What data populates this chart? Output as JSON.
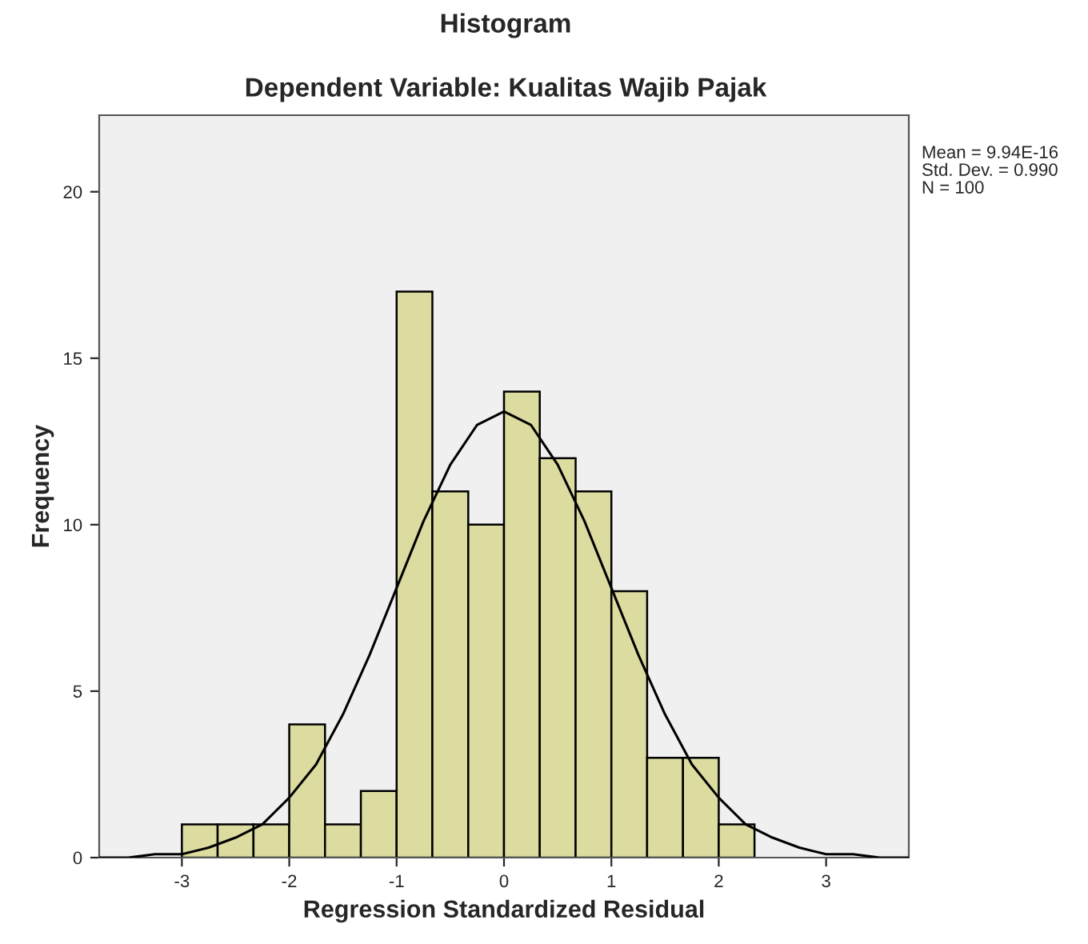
{
  "chart_data": {
    "type": "histogram",
    "title": "Histogram",
    "subtitle": "Dependent Variable: Kualitas Wajib Pajak",
    "xlabel": "Regression Standardized Residual",
    "ylabel": "Frequency",
    "bins": [
      -3,
      -2.667,
      -2.333,
      -2,
      -1.667,
      -1.333,
      -1,
      -0.667,
      -0.333,
      0,
      0.333,
      0.667,
      1,
      1.333,
      1.667,
      2,
      2.333
    ],
    "values": [
      1,
      1,
      1,
      4,
      1,
      2,
      17,
      11,
      10,
      14,
      12,
      11,
      8,
      3,
      3,
      1
    ],
    "color": "#dcdca0",
    "series": [
      {
        "type": "line",
        "color": "#000000",
        "x": [
          -3.77,
          -3.5,
          -3.25,
          -3,
          -2.75,
          -2.5,
          -2.25,
          -2,
          -1.75,
          -1.5,
          -1.25,
          -1,
          -0.75,
          -0.5,
          -0.25,
          0,
          0.25,
          0.5,
          0.75,
          1,
          1.25,
          1.5,
          1.75,
          2,
          2.25,
          2.5,
          2.75,
          3,
          3.25,
          3.5,
          3.77
        ],
        "values": [
          0.0,
          0.0,
          0.1,
          0.1,
          0.3,
          0.6,
          1.0,
          1.8,
          2.8,
          4.3,
          6.1,
          8.1,
          10.1,
          11.8,
          13.0,
          13.4,
          13.0,
          11.8,
          10.1,
          8.1,
          6.1,
          4.3,
          2.8,
          1.8,
          1.0,
          0.6,
          0.3,
          0.1,
          0.1,
          0.0,
          0.0
        ]
      }
    ],
    "xlim": [
      -3.77,
      3.77
    ],
    "ylim": [
      0,
      22.3
    ],
    "xticks": [
      -3,
      -2,
      -1,
      0,
      1,
      2,
      3
    ],
    "yticks": [
      0,
      5,
      10,
      15,
      20
    ],
    "annotations": [
      "Mean = 9.94E-16",
      "Std. Dev. = 0.990",
      "N = 100"
    ],
    "grid": false,
    "marker": "none",
    "line_style": "solid"
  }
}
